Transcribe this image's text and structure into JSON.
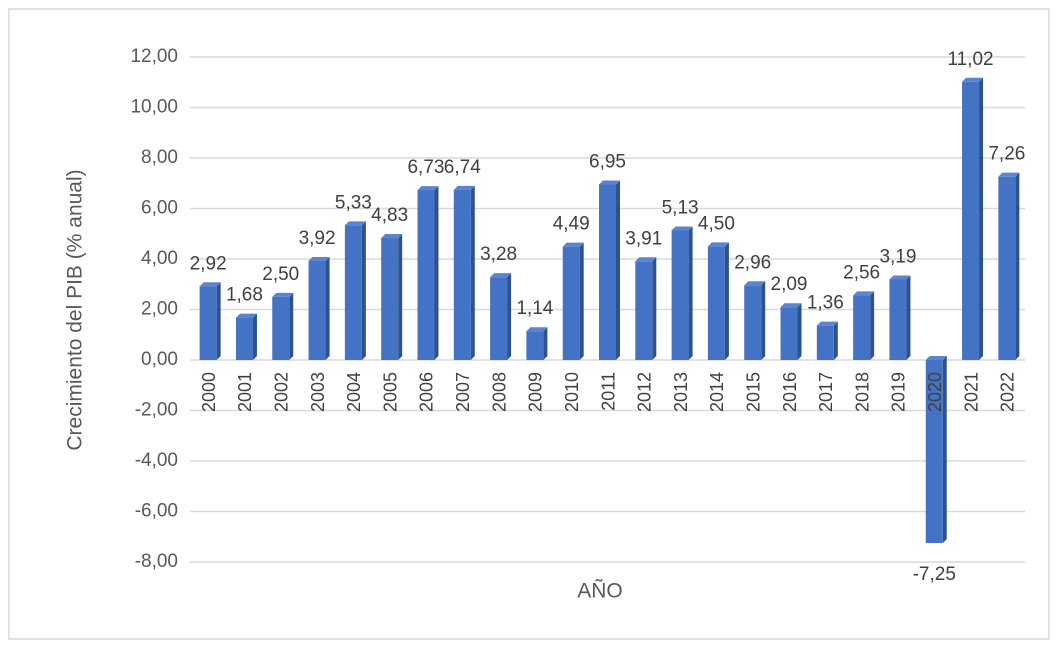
{
  "chart_data": {
    "type": "bar",
    "x_label": "AÑO",
    "y_label": "Crecimiento del PIB (% anual)",
    "categories": [
      "2000",
      "2001",
      "2002",
      "2003",
      "2004",
      "2005",
      "2006",
      "2007",
      "2008",
      "2009",
      "2010",
      "2011",
      "2012",
      "2013",
      "2014",
      "2015",
      "2016",
      "2017",
      "2018",
      "2019",
      "2020",
      "2021",
      "2022"
    ],
    "values": [
      2.92,
      1.68,
      2.5,
      3.92,
      5.33,
      4.83,
      6.73,
      6.74,
      3.28,
      1.14,
      4.49,
      6.95,
      3.91,
      5.13,
      4.5,
      2.96,
      2.09,
      1.36,
      2.56,
      3.19,
      -7.25,
      11.02,
      7.26
    ],
    "value_labels": [
      "2,92",
      "1,68",
      "2,50",
      "3,92",
      "5,33",
      "4,83",
      "6,73",
      "6,74",
      "3,28",
      "1,14",
      "4,49",
      "6,95",
      "3,91",
      "5,13",
      "4,50",
      "2,96",
      "2,09",
      "1,36",
      "2,56",
      "3,19",
      "-7,25",
      "11,02",
      "7,26"
    ],
    "color": "#4472c4",
    "ylim": [
      -8,
      12
    ],
    "yticks": [
      {
        "value": -8,
        "label": "-8,00"
      },
      {
        "value": -6,
        "label": "-6,00"
      },
      {
        "value": -4,
        "label": "-4,00"
      },
      {
        "value": -2,
        "label": "-2,00"
      },
      {
        "value": 0,
        "label": "0,00"
      },
      {
        "value": 2,
        "label": "2,00"
      },
      {
        "value": 4,
        "label": "4,00"
      },
      {
        "value": 6,
        "label": "6,00"
      },
      {
        "value": 8,
        "label": "8,00"
      },
      {
        "value": 10,
        "label": "10,00"
      },
      {
        "value": 12,
        "label": "12,00"
      }
    ],
    "grid": true
  }
}
